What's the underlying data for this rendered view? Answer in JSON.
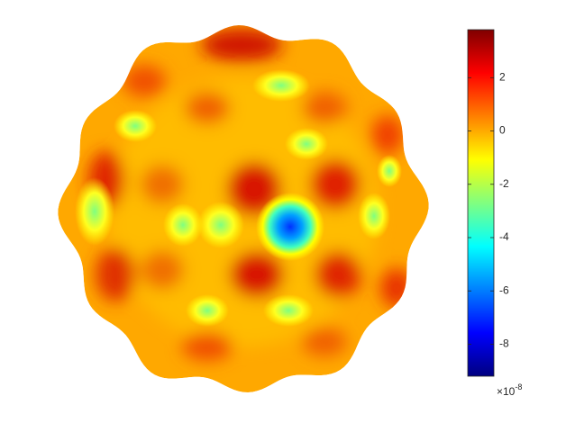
{
  "chart_data": {
    "type": "surface",
    "colormap": "jet",
    "clim": [
      -9.2,
      3.8
    ],
    "colorbar_ticks": [
      2,
      0,
      -2,
      -4,
      -6,
      -8
    ],
    "colorbar_exponent_base": "×10",
    "colorbar_exponent": "-8"
  }
}
